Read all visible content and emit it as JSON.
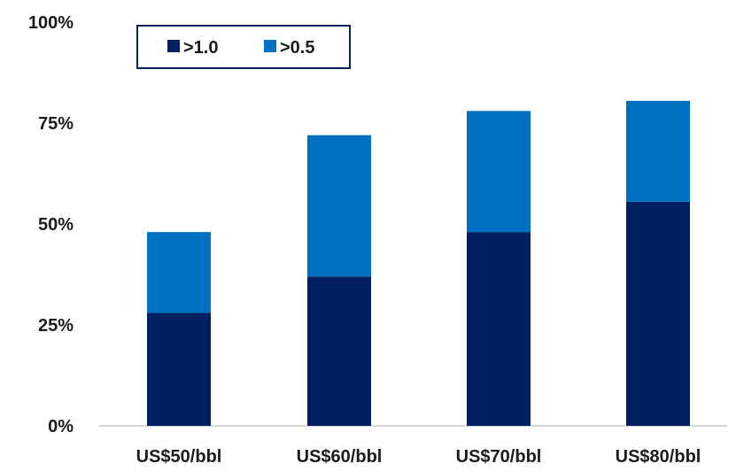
{
  "chart_data": {
    "type": "bar",
    "stacked": true,
    "categories": [
      "US$50/bbl",
      "US$60/bbl",
      "US$70/bbl",
      "US$80/bbl"
    ],
    "series": [
      {
        "name": ">1.0",
        "color": "#002060",
        "values": [
          28,
          37,
          48,
          55.5
        ]
      },
      {
        "name": ">0.5",
        "color": "#0070C0",
        "values": [
          20,
          35,
          30,
          25
        ]
      }
    ],
    "ylim": [
      0,
      100
    ],
    "y_ticks": [
      0,
      25,
      50,
      75,
      100
    ],
    "y_tick_labels": [
      "0%",
      "25%",
      "50%",
      "75%",
      "100%"
    ],
    "grid": false,
    "legend_position": "top"
  }
}
